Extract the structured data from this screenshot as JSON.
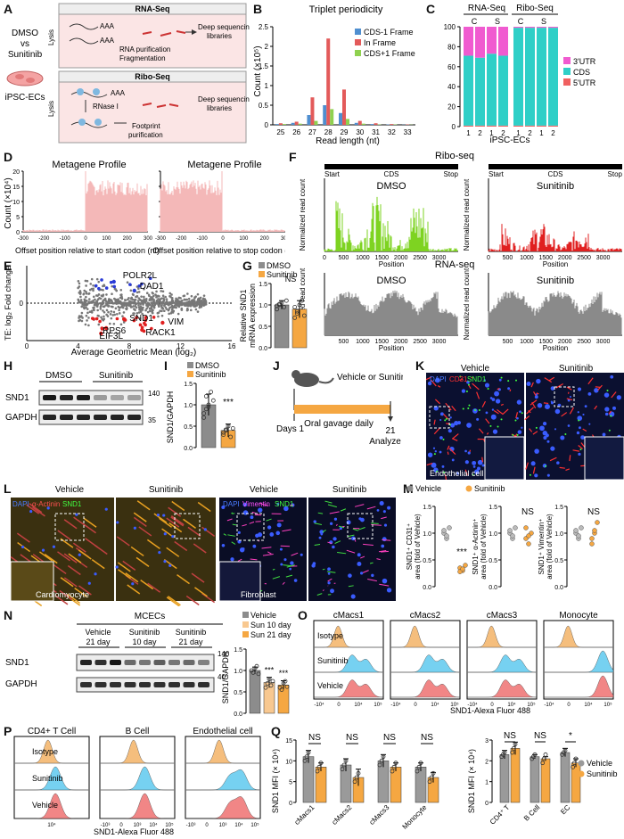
{
  "panels": {
    "a": "A",
    "b": "B",
    "c": "C",
    "d": "D",
    "e": "E",
    "f": "F",
    "g": "G",
    "h": "H",
    "i": "I",
    "j": "J",
    "k": "K",
    "l": "L",
    "m": "M",
    "n": "N",
    "o": "O",
    "p": "P",
    "q": "Q"
  },
  "panelA": {
    "left_label": "DMSO\nvs\nSunitinib",
    "dmso": "DMSO",
    "vs": "vs",
    "sunitinib": "Sunitinib",
    "cells": "iPSC-ECs",
    "lysis": "Lysis",
    "rna_title": "RNA-Seq",
    "ribo_title": "Ribo-Seq",
    "aaa": "AAA",
    "rna_step1": "RNA purification",
    "rna_step2": "Fragmentation",
    "deep1": "Deep sequencing",
    "deep2": "libraries",
    "rnase": "RNase I",
    "footprint1": "Footprint",
    "footprint2": "purification"
  },
  "panelB": {
    "title": "Triplet periodicity",
    "ylabel": "Count (×10⁵)",
    "xlabel": "Read length (nt)",
    "legend": [
      "CDS-1 Frame",
      "In Frame",
      "CDS+1 Frame"
    ],
    "colors": [
      "#4f8fd0",
      "#e35a5a",
      "#8fd14f"
    ]
  },
  "panelC": {
    "group1": "RNA-Seq",
    "group2": "Ribo-Seq",
    "sub": [
      "C",
      "S",
      "C",
      "S"
    ],
    "xticks": [
      "1",
      "2",
      "1",
      "2",
      "1",
      "2",
      "1",
      "2"
    ],
    "xlabel": "iPSC-ECs",
    "legend": [
      "3'UTR",
      "CDS",
      "5'UTR"
    ],
    "colors": [
      "#f05bd0",
      "#2ecfc7",
      "#f06060"
    ]
  },
  "panelD": {
    "title1": "Metagene Profile",
    "title2": "Metagene Profile",
    "ylabel": "Count (×10⁴)",
    "xlabel1": "Offset position relative to start codon (nt)",
    "xlabel2": "Offset position relative to stop codon (nt)",
    "xticks": [
      "-300",
      "-200",
      "-100",
      "0",
      "100",
      "200",
      "300"
    ]
  },
  "panelE": {
    "ylabel": "TE: log₂ Fold change",
    "xlabel": "Average Geometric Mean (log₂)",
    "genes": [
      "POLR2L",
      "DAD1",
      "SND1",
      "VIM",
      "RPS6",
      "EIF3L",
      "RACK1"
    ],
    "xticks": [
      "0",
      "4",
      "8",
      "12",
      "16"
    ]
  },
  "panelF": {
    "ribo_title": "Ribo-seq",
    "rna_title": "RNA-seq",
    "dmso": "DMSO",
    "sunitinib": "Sunitinib",
    "start": "Start",
    "cds": "CDS",
    "stop": "Stop",
    "ylabel": "Normalized read count",
    "xlabel": "Position",
    "xticks": [
      "0",
      "500",
      "1000",
      "1500",
      "2000",
      "2500",
      "3000"
    ],
    "xticks2": [
      "500",
      "1000",
      "1500",
      "2000",
      "2500",
      "3000"
    ]
  },
  "panelG": {
    "legend": [
      "DMSO",
      "Sunitinib"
    ],
    "ylabel1": "Relative SND1",
    "ylabel2": "mRNA expression",
    "sig": "NS",
    "yticks": [
      "0.0",
      "0.5",
      "1.0",
      "1.5"
    ]
  },
  "panelH": {
    "dmso": "DMSO",
    "sunitinib": "Sunitinib",
    "row1": "SND1",
    "row2": "GAPDH",
    "mw1": "140",
    "mw2": "35"
  },
  "panelI": {
    "legend": [
      "DMSO",
      "Sunitinib"
    ],
    "ylabel": "SND1/GAPDH",
    "sig": "***",
    "yticks": [
      "0.0",
      "0.5",
      "1.0",
      "1.5"
    ]
  },
  "panelJ": {
    "treat": "Vehicle or Sunitinib",
    "days1": "Days 1",
    "gavage": "Oral gavage daily",
    "d21": "21",
    "analyze": "Analyze"
  },
  "panelK": {
    "vehicle": "Vehicle",
    "sunitinib": "Sunitinib",
    "stain": "DAPI CD31 SND1",
    "dapi": "DAPI",
    "cd31": "CD31",
    "snd1": "SND1",
    "cell": "Endothelial cell"
  },
  "panelL": {
    "vehicle": "Vehicle",
    "sunitinib": "Sunitinib",
    "dapi": "DAPI",
    "actinin": "α-Actinin",
    "snd1": "SND1",
    "vimentin": "Vimentin",
    "cell1": "Cardiomyocyte",
    "cell2": "Fibroblast"
  },
  "panelM": {
    "legend": [
      "Vehicle",
      "Sunitinib"
    ],
    "plots": [
      {
        "ylabel1": "SND1⁺ CD31⁺",
        "ylabel2": "area (fold of Vehicle)",
        "sig": "***"
      },
      {
        "ylabel1": "SND1⁺ α-Actinin⁺",
        "ylabel2": "area (fold of Vehicle)",
        "sig": "NS"
      },
      {
        "ylabel1": "SND1⁺ Vimentin⁺",
        "ylabel2": "area (fold of Vehicle)",
        "sig": "NS"
      }
    ]
  },
  "panelN": {
    "title": "MCECs",
    "groups": [
      "Vehicle",
      "Sunitinib",
      "Sunitinib"
    ],
    "days": [
      "21 day",
      "10 day",
      "21 day"
    ],
    "row1": "SND1",
    "row2": "GAPDH",
    "mw1": "140",
    "mw2": "40",
    "legend": [
      "Vehicle",
      "Sun 10 day",
      "Sun 21 day"
    ],
    "ylabel": "SND1/GAPDH",
    "sig": [
      "***",
      "***"
    ],
    "yticks": [
      "0.0",
      "0.5",
      "1.0",
      "1.5"
    ]
  },
  "panelO": {
    "titles": [
      "cMacs1",
      "cMacs2",
      "cMacs3",
      "Monocyte"
    ],
    "rows": [
      "Isotype",
      "Sunitinib",
      "Vehicle"
    ],
    "xlabel": "SND1-Alexa Fluor 488",
    "xticks": [
      "-10⁴",
      "0",
      "10⁴",
      "10⁵"
    ]
  },
  "panelP": {
    "titles": [
      "CD4+ T Cell",
      "B Cell",
      "Endothelial cell"
    ],
    "rows": [
      "Isotype",
      "Sunitinib",
      "Vehicle"
    ],
    "xlabel": "SND1-Alexa Fluor 488",
    "xticks": [
      "-10³",
      "0",
      "10³",
      "10⁴",
      "10⁵"
    ]
  },
  "panelQ": {
    "ylabel": "SND1 MFI (× 10⁴)",
    "left_groups": [
      "cMacs1",
      "cMacs2",
      "cMacs3",
      "Monocyte"
    ],
    "left_sig": [
      "NS",
      "NS",
      "NS",
      "NS"
    ],
    "right_groups": [
      "CD4⁺ T",
      "B Cell",
      "EC"
    ],
    "right_sig": [
      "NS",
      "NS",
      "*"
    ],
    "legend": [
      "Vehicle",
      "Sunitinib"
    ],
    "yticks_left": [
      "0",
      "5",
      "10",
      "15"
    ],
    "yticks_right": [
      "0",
      "1",
      "2",
      "3"
    ]
  },
  "colors": {
    "dmso": "#8c8c8c",
    "sunitinib": "#f5a742",
    "vehicle_hist": "#f07a7a",
    "sun_hist": "#68cdf0",
    "iso_hist": "#f5b870",
    "ribo_dmso": "#7ed321",
    "ribo_sun": "#e02020",
    "rna_gray": "#8a8a8a"
  }
}
